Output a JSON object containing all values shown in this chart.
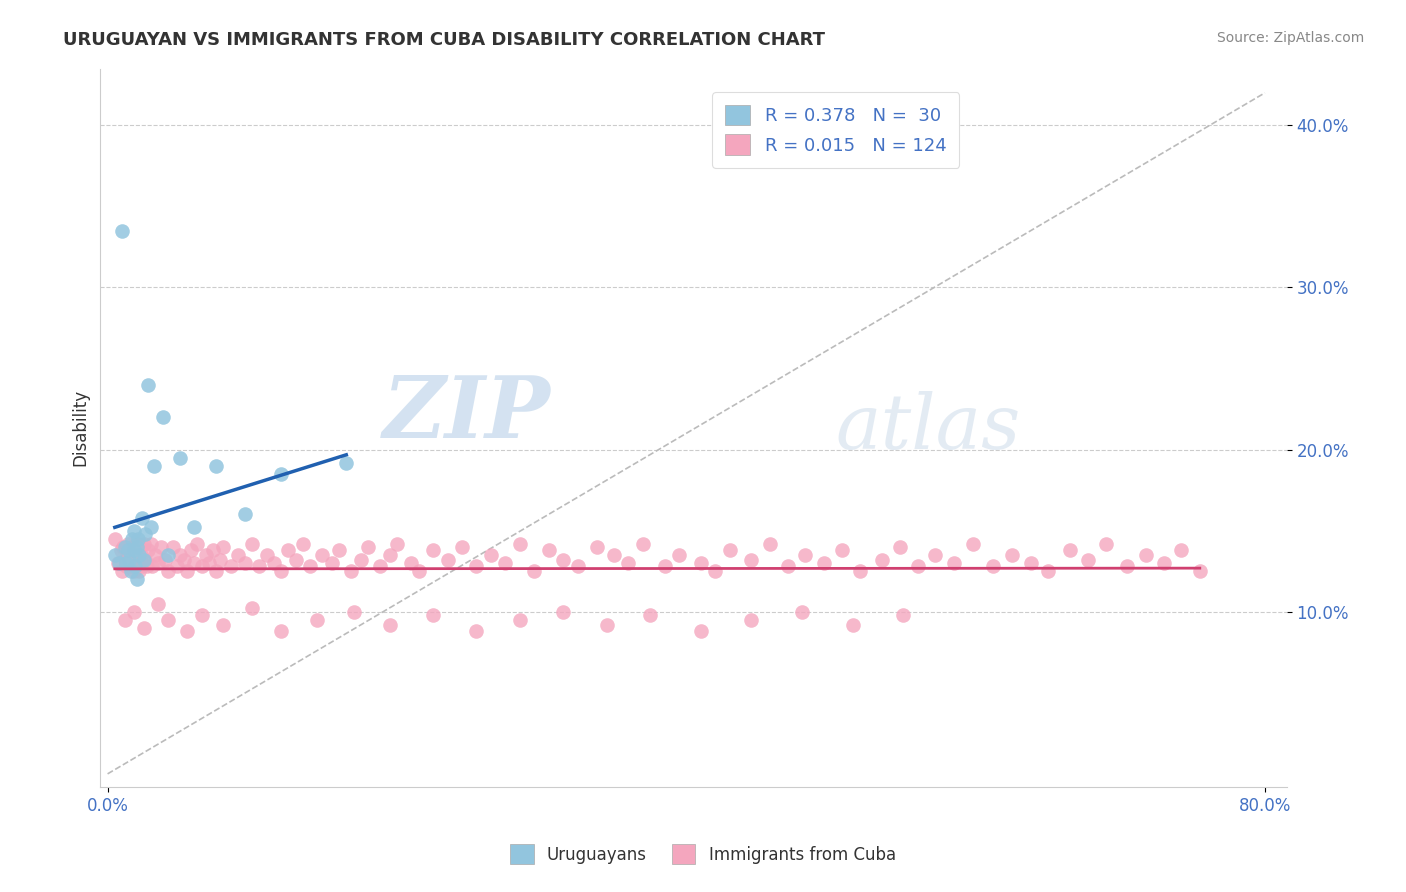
{
  "title": "URUGUAYAN VS IMMIGRANTS FROM CUBA DISABILITY CORRELATION CHART",
  "source": "Source: ZipAtlas.com",
  "ylabel": "Disability",
  "color_uruguayan": "#92c5de",
  "color_cuba": "#f4a6be",
  "color_line_uruguayan": "#2060b0",
  "color_line_cuba": "#d04070",
  "color_dashed": "#bbbbbb",
  "legend_label1": "R = 0.378   N =  30",
  "legend_label2": "R = 0.015   N = 124",
  "bottom_label1": "Uruguayans",
  "bottom_label2": "Immigrants from Cuba",
  "watermark_zip": "ZIP",
  "watermark_atlas": "atlas",
  "xlim": [
    0.0,
    0.8
  ],
  "ylim": [
    0.0,
    0.42
  ],
  "yticks": [
    0.1,
    0.2,
    0.3,
    0.4
  ],
  "ytick_labels": [
    "10.0%",
    "20.0%",
    "30.0%",
    "40.0%"
  ],
  "xticks": [
    0.0,
    0.8
  ],
  "xtick_labels": [
    "0.0%",
    "80.0%"
  ],
  "uru_x": [
    0.005,
    0.008,
    0.01,
    0.012,
    0.013,
    0.014,
    0.015,
    0.016,
    0.017,
    0.018,
    0.018,
    0.019,
    0.02,
    0.02,
    0.021,
    0.022,
    0.024,
    0.025,
    0.026,
    0.028,
    0.03,
    0.032,
    0.038,
    0.042,
    0.05,
    0.06,
    0.075,
    0.095,
    0.12,
    0.165
  ],
  "uru_y": [
    0.135,
    0.13,
    0.335,
    0.14,
    0.13,
    0.138,
    0.132,
    0.125,
    0.145,
    0.138,
    0.15,
    0.128,
    0.14,
    0.12,
    0.145,
    0.135,
    0.158,
    0.132,
    0.148,
    0.24,
    0.152,
    0.19,
    0.22,
    0.135,
    0.195,
    0.152,
    0.19,
    0.16,
    0.185,
    0.192
  ],
  "cuba_x": [
    0.005,
    0.007,
    0.009,
    0.01,
    0.011,
    0.012,
    0.013,
    0.014,
    0.015,
    0.016,
    0.017,
    0.018,
    0.018,
    0.019,
    0.02,
    0.021,
    0.022,
    0.023,
    0.024,
    0.025,
    0.026,
    0.027,
    0.028,
    0.03,
    0.031,
    0.033,
    0.035,
    0.037,
    0.04,
    0.042,
    0.045,
    0.048,
    0.05,
    0.053,
    0.055,
    0.058,
    0.06,
    0.062,
    0.065,
    0.068,
    0.07,
    0.073,
    0.075,
    0.078,
    0.08,
    0.085,
    0.09,
    0.095,
    0.1,
    0.105,
    0.11,
    0.115,
    0.12,
    0.125,
    0.13,
    0.135,
    0.14,
    0.148,
    0.155,
    0.16,
    0.168,
    0.175,
    0.18,
    0.188,
    0.195,
    0.2,
    0.21,
    0.215,
    0.225,
    0.235,
    0.245,
    0.255,
    0.265,
    0.275,
    0.285,
    0.295,
    0.305,
    0.315,
    0.325,
    0.338,
    0.35,
    0.36,
    0.37,
    0.385,
    0.395,
    0.41,
    0.42,
    0.43,
    0.445,
    0.458,
    0.47,
    0.482,
    0.495,
    0.508,
    0.52,
    0.535,
    0.548,
    0.56,
    0.572,
    0.585,
    0.598,
    0.612,
    0.625,
    0.638,
    0.65,
    0.665,
    0.678,
    0.69,
    0.705,
    0.718,
    0.73,
    0.742,
    0.755,
    0.012,
    0.018,
    0.025,
    0.035,
    0.042,
    0.055,
    0.065,
    0.08,
    0.1,
    0.12,
    0.145,
    0.17,
    0.195,
    0.225,
    0.255,
    0.285,
    0.315,
    0.345,
    0.375,
    0.41,
    0.445,
    0.48,
    0.515,
    0.55
  ],
  "cuba_y": [
    0.145,
    0.13,
    0.138,
    0.125,
    0.14,
    0.132,
    0.128,
    0.142,
    0.135,
    0.128,
    0.14,
    0.132,
    0.125,
    0.138,
    0.13,
    0.142,
    0.125,
    0.135,
    0.128,
    0.142,
    0.132,
    0.128,
    0.138,
    0.142,
    0.128,
    0.135,
    0.13,
    0.14,
    0.132,
    0.125,
    0.14,
    0.128,
    0.135,
    0.132,
    0.125,
    0.138,
    0.13,
    0.142,
    0.128,
    0.135,
    0.13,
    0.138,
    0.125,
    0.132,
    0.14,
    0.128,
    0.135,
    0.13,
    0.142,
    0.128,
    0.135,
    0.13,
    0.125,
    0.138,
    0.132,
    0.142,
    0.128,
    0.135,
    0.13,
    0.138,
    0.125,
    0.132,
    0.14,
    0.128,
    0.135,
    0.142,
    0.13,
    0.125,
    0.138,
    0.132,
    0.14,
    0.128,
    0.135,
    0.13,
    0.142,
    0.125,
    0.138,
    0.132,
    0.128,
    0.14,
    0.135,
    0.13,
    0.142,
    0.128,
    0.135,
    0.13,
    0.125,
    0.138,
    0.132,
    0.142,
    0.128,
    0.135,
    0.13,
    0.138,
    0.125,
    0.132,
    0.14,
    0.128,
    0.135,
    0.13,
    0.142,
    0.128,
    0.135,
    0.13,
    0.125,
    0.138,
    0.132,
    0.142,
    0.128,
    0.135,
    0.13,
    0.138,
    0.125,
    0.095,
    0.1,
    0.09,
    0.105,
    0.095,
    0.088,
    0.098,
    0.092,
    0.102,
    0.088,
    0.095,
    0.1,
    0.092,
    0.098,
    0.088,
    0.095,
    0.1,
    0.092,
    0.098,
    0.088,
    0.095,
    0.1,
    0.092,
    0.098
  ]
}
